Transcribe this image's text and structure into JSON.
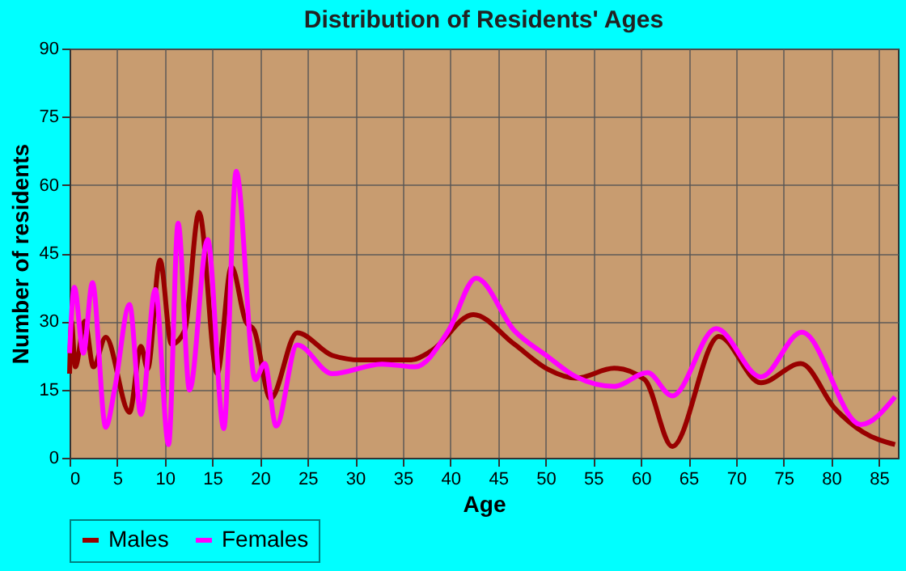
{
  "chart_data": {
    "type": "line",
    "title": "Distribution of Residents' Ages",
    "xlabel": "Age",
    "ylabel": "Number of residents",
    "xlim": [
      0,
      87
    ],
    "xticks": [
      0,
      5,
      10,
      15,
      20,
      25,
      30,
      35,
      40,
      45,
      50,
      55,
      60,
      65,
      70,
      75,
      80,
      85
    ],
    "ylim": [
      0,
      90
    ],
    "yticks": [
      0,
      15,
      30,
      45,
      60,
      75,
      90
    ],
    "grid": true,
    "legend": "bottom",
    "marker": "none",
    "line_style": "solid",
    "series": [
      {
        "name": "Males",
        "color": "#990000",
        "x": [
          0,
          0.2,
          0.6,
          1.6,
          2.5,
          3.8,
          6.3,
          7.5,
          8.2,
          9.5,
          10.7,
          12.1,
          13.6,
          15.5,
          17,
          18.5,
          19.4,
          21.1,
          23.9,
          27.6,
          30.6,
          35.8,
          38,
          42.4,
          46.7,
          50.2,
          53.2,
          57.2,
          60.4,
          63.3,
          68.2,
          72.6,
          76.8,
          80.4,
          83.3,
          86.7
        ],
        "values": [
          18.5,
          30,
          20,
          30,
          20,
          26.5,
          10,
          24.5,
          19.5,
          43.5,
          25,
          28,
          54,
          18.5,
          42,
          30,
          28,
          13,
          27.5,
          22.5,
          21.5,
          21.5,
          23.5,
          31.5,
          25,
          19.5,
          17.5,
          19.7,
          17.2,
          2.5,
          26.7,
          16.5,
          20.7,
          10.8,
          5.7,
          2.9
        ]
      },
      {
        "name": "Females",
        "color": "#ff00ff",
        "x": [
          0,
          0.5,
          1.45,
          2.4,
          3.8,
          4.75,
          6.3,
          7.5,
          9,
          10.4,
          11.4,
          12.6,
          14.5,
          16.2,
          17.5,
          19.5,
          20.5,
          21.7,
          23.9,
          27.6,
          32.8,
          36.3,
          39.8,
          42.7,
          46.7,
          50.2,
          53.2,
          57.2,
          60.7,
          63.3,
          67.9,
          72.6,
          76.9,
          83.1,
          86.7
        ],
        "values": [
          23,
          37.5,
          23,
          38.5,
          6.7,
          15.3,
          33.7,
          9.5,
          37,
          2.9,
          51.6,
          14.9,
          48,
          6.4,
          63,
          17.2,
          20.7,
          7,
          24.8,
          18.5,
          20.6,
          20,
          28,
          39.5,
          28,
          22.3,
          17.8,
          15.7,
          18.7,
          13.6,
          28.4,
          17.8,
          27.6,
          7.3,
          13.4
        ]
      }
    ]
  }
}
